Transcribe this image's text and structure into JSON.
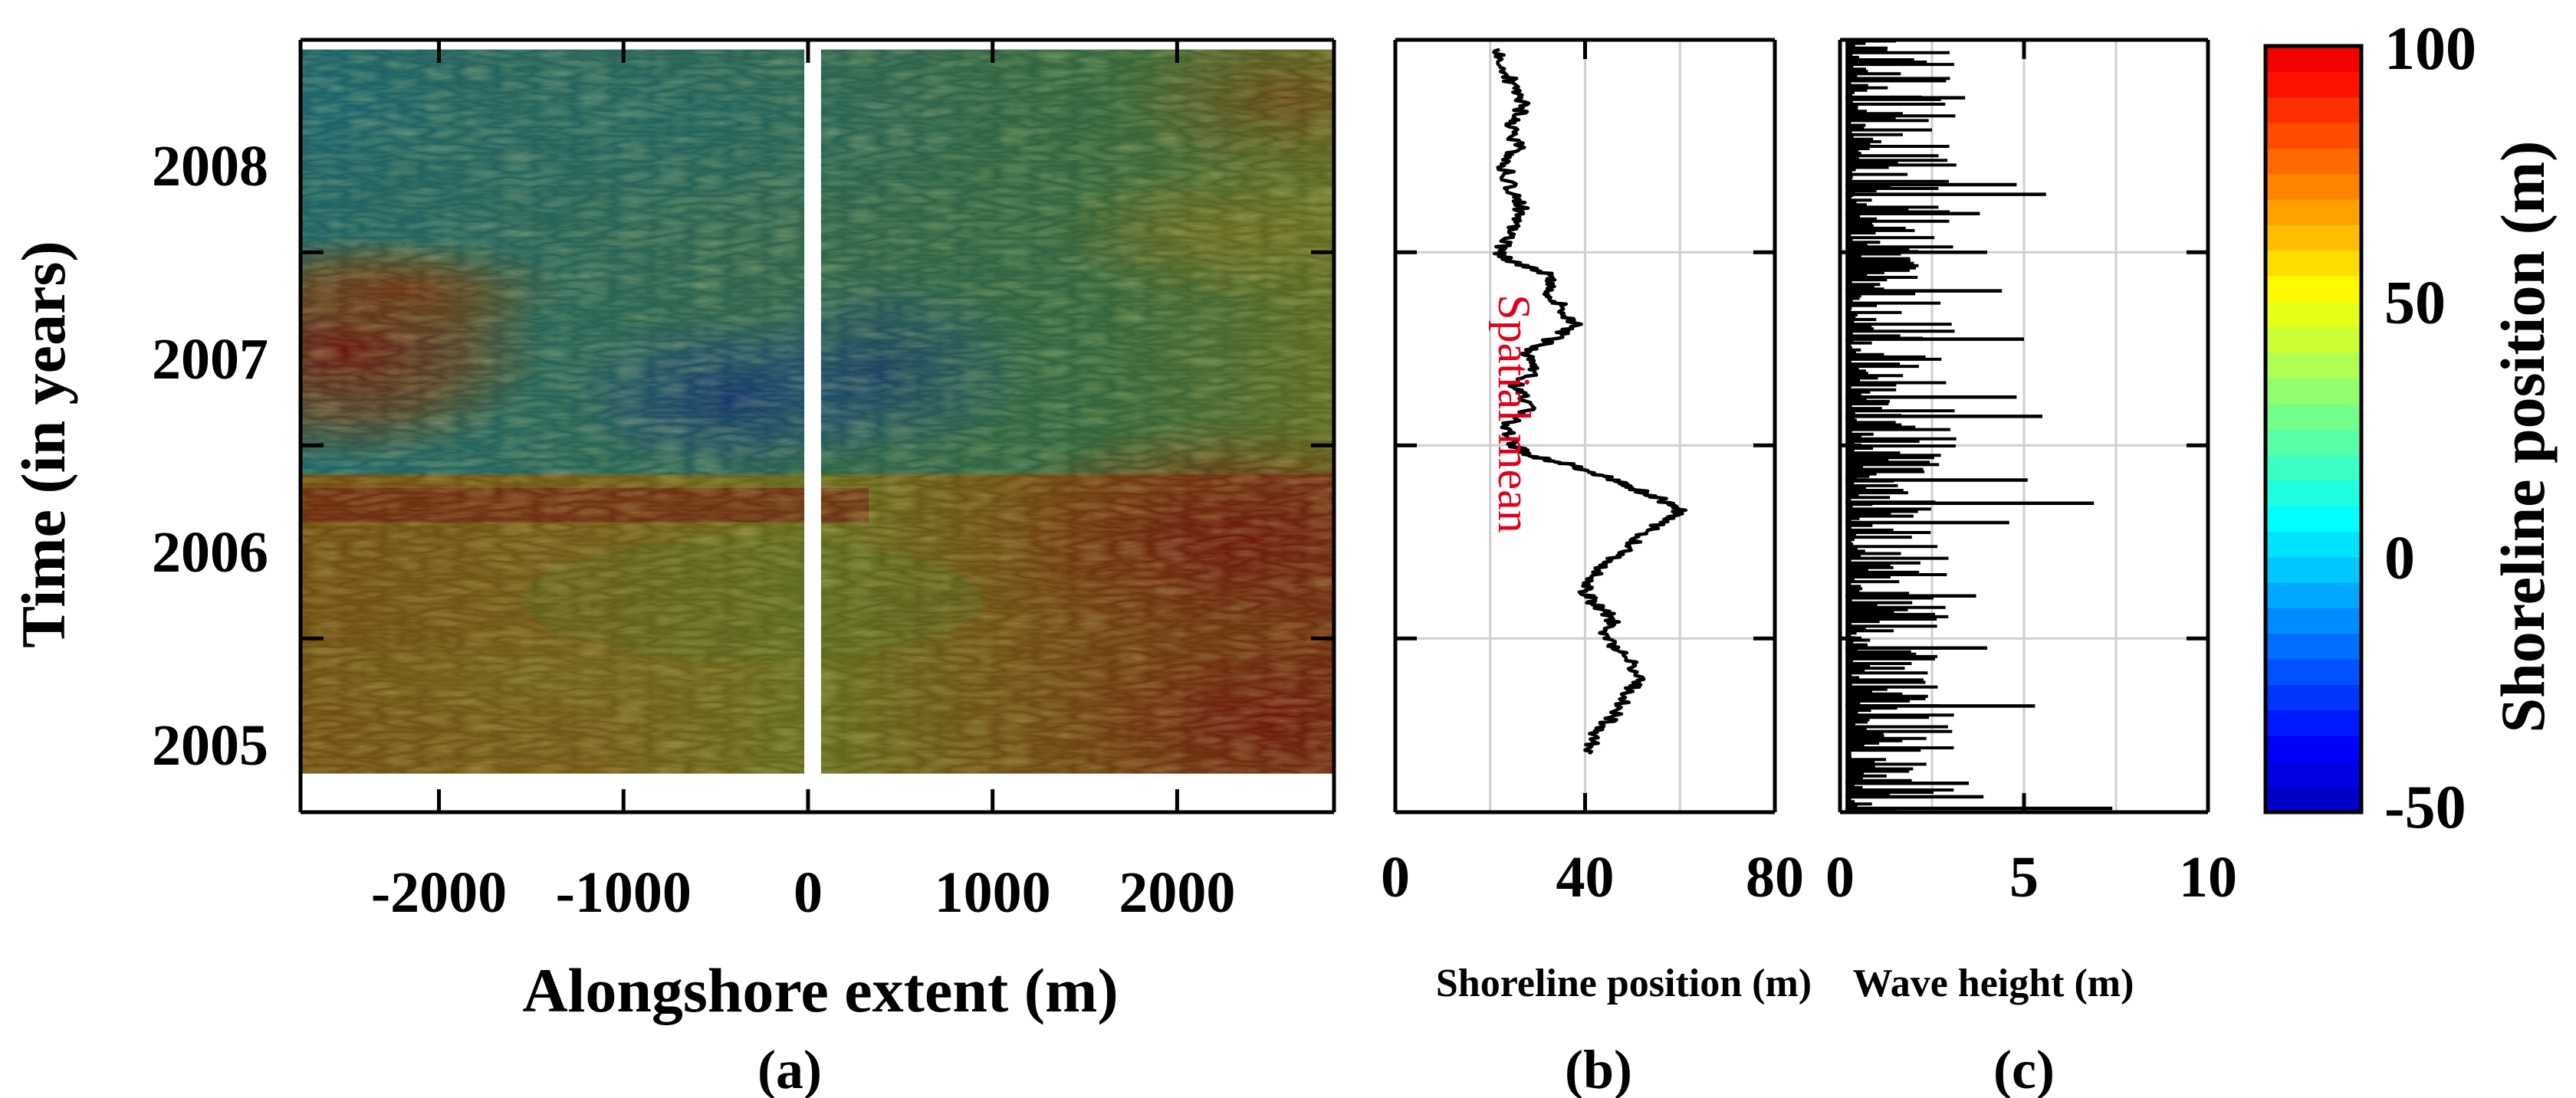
{
  "chart_data": [
    {
      "id": "a",
      "type": "heatmap",
      "panel_label": "(a)",
      "xlabel": "Alongshore extent (m)",
      "ylabel": "Time (in years)",
      "xlim": [
        -2750,
        2850
      ],
      "ylim": [
        2004.6,
        2008.6
      ],
      "data_time_range": [
        2004.8,
        2008.55
      ],
      "gap_x": [
        -20,
        70
      ],
      "x_ticks": [
        -2000,
        -1000,
        0,
        1000,
        2000
      ],
      "x_tick_labels": [
        "-2000",
        "-1000",
        "0",
        "1000",
        "2000"
      ],
      "y_ticks": [
        2004.6,
        2005.5,
        2006.5,
        2007.5,
        2008.6
      ],
      "y_label_values": [
        2004.95,
        2005.95,
        2006.95,
        2007.95
      ],
      "y_tick_labels": [
        "2005",
        "2006",
        "2007",
        "2008"
      ],
      "colorbar_label": "Shoreline position (m)",
      "grid": false
    },
    {
      "id": "b",
      "type": "line",
      "panel_label": "(b)",
      "xlabel": "Shoreline position (m)",
      "xlim": [
        0,
        80
      ],
      "ylim": [
        2004.6,
        2008.6
      ],
      "x_ticks": [
        0,
        40,
        80
      ],
      "x_tick_labels": [
        "0",
        "40",
        "80"
      ],
      "grid_x": [
        20,
        40,
        60
      ],
      "y_ticks": [
        2005.5,
        2006.5,
        2007.5
      ],
      "annotation": "Spatial mean",
      "series": [
        {
          "name": "Spatial mean",
          "color": "#000000",
          "points": [
            [
              41,
              2004.9
            ],
            [
              42,
              2005.0
            ],
            [
              46,
              2005.1
            ],
            [
              49,
              2005.22
            ],
            [
              52,
              2005.3
            ],
            [
              48,
              2005.42
            ],
            [
              44,
              2005.5
            ],
            [
              46,
              2005.6
            ],
            [
              42,
              2005.68
            ],
            [
              40,
              2005.75
            ],
            [
              43,
              2005.85
            ],
            [
              48,
              2005.95
            ],
            [
              53,
              2006.05
            ],
            [
              57,
              2006.12
            ],
            [
              60,
              2006.16
            ],
            [
              56,
              2006.22
            ],
            [
              50,
              2006.28
            ],
            [
              44,
              2006.34
            ],
            [
              37,
              2006.4
            ],
            [
              28,
              2006.45
            ],
            [
              25,
              2006.5
            ],
            [
              23,
              2006.6
            ],
            [
              29,
              2006.7
            ],
            [
              25,
              2006.8
            ],
            [
              30,
              2006.9
            ],
            [
              28,
              2006.98
            ],
            [
              33,
              2007.05
            ],
            [
              38,
              2007.12
            ],
            [
              35,
              2007.22
            ],
            [
              32,
              2007.3
            ],
            [
              33,
              2007.38
            ],
            [
              25,
              2007.45
            ],
            [
              22,
              2007.5
            ],
            [
              24,
              2007.6
            ],
            [
              27,
              2007.7
            ],
            [
              25,
              2007.8
            ],
            [
              23,
              2007.95
            ],
            [
              26,
              2008.05
            ],
            [
              24,
              2008.15
            ],
            [
              27,
              2008.25
            ],
            [
              25,
              2008.35
            ],
            [
              23,
              2008.45
            ],
            [
              22,
              2008.55
            ]
          ]
        }
      ]
    },
    {
      "id": "c",
      "type": "bar",
      "panel_label": "(c)",
      "xlabel": "Wave height (m)",
      "xlim": [
        0,
        10
      ],
      "ylim": [
        2004.6,
        2008.6
      ],
      "x_ticks": [
        0,
        5,
        10
      ],
      "x_tick_labels": [
        "0",
        "5",
        "10"
      ],
      "grid_x": [
        2.5,
        5,
        7.5
      ],
      "y_ticks": [
        2005.5,
        2006.5,
        2007.5
      ],
      "peaks": [
        {
          "time": 2004.62,
          "value": 7.4
        },
        {
          "time": 2004.68,
          "value": 3.9
        },
        {
          "time": 2004.75,
          "value": 3.5
        },
        {
          "time": 2005.15,
          "value": 5.3
        },
        {
          "time": 2005.45,
          "value": 4.0
        },
        {
          "time": 2005.72,
          "value": 3.7
        },
        {
          "time": 2006.1,
          "value": 4.6
        },
        {
          "time": 2006.2,
          "value": 6.9
        },
        {
          "time": 2006.32,
          "value": 5.1
        },
        {
          "time": 2006.65,
          "value": 5.5
        },
        {
          "time": 2006.75,
          "value": 4.8
        },
        {
          "time": 2007.05,
          "value": 5.0
        },
        {
          "time": 2007.3,
          "value": 4.4
        },
        {
          "time": 2007.5,
          "value": 4.0
        },
        {
          "time": 2007.7,
          "value": 3.8
        },
        {
          "time": 2007.8,
          "value": 5.6
        },
        {
          "time": 2007.85,
          "value": 4.8
        },
        {
          "time": 2008.3,
          "value": 3.4
        }
      ]
    },
    {
      "id": "colorbar",
      "type": "colorbar",
      "label": "Shoreline position (m)",
      "range": [
        -50,
        100
      ],
      "ticks": [
        -50,
        0,
        50,
        100
      ],
      "tick_labels": [
        "-50",
        "0",
        "50",
        "100"
      ],
      "colormap": "jet",
      "levels": 30
    }
  ]
}
